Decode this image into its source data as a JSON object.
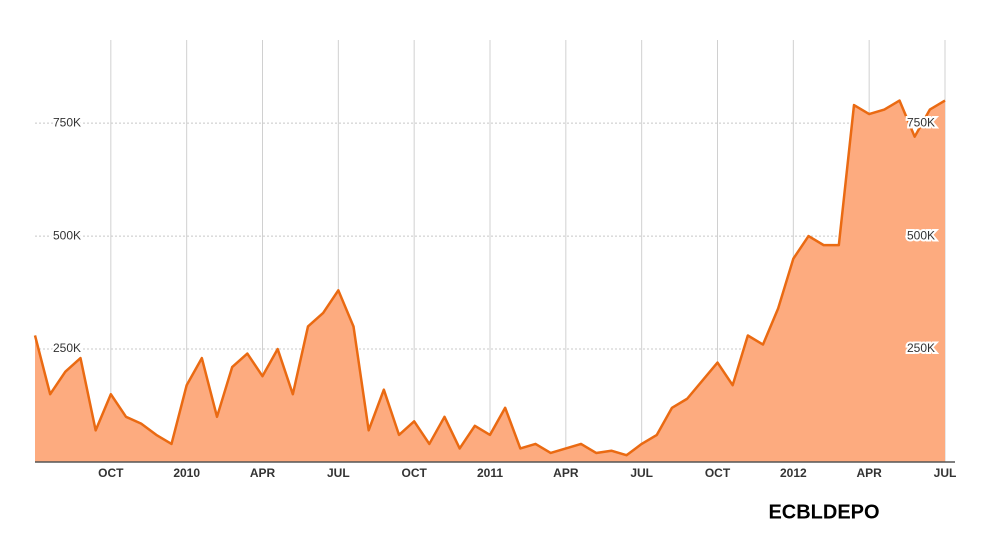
{
  "chart_data": {
    "type": "area",
    "title": "ECBLDEPO",
    "x": [
      2009.5,
      2009.55,
      2009.6,
      2009.65,
      2009.7,
      2009.75,
      2009.8,
      2009.85,
      2009.9,
      2009.95,
      2010.0,
      2010.05,
      2010.1,
      2010.15,
      2010.2,
      2010.25,
      2010.3,
      2010.35,
      2010.4,
      2010.45,
      2010.5,
      2010.55,
      2010.6,
      2010.65,
      2010.7,
      2010.75,
      2010.8,
      2010.85,
      2010.9,
      2010.95,
      2011.0,
      2011.05,
      2011.1,
      2011.15,
      2011.2,
      2011.25,
      2011.3,
      2011.35,
      2011.4,
      2011.45,
      2011.5,
      2011.55,
      2011.6,
      2011.65,
      2011.7,
      2011.75,
      2011.8,
      2011.85,
      2011.9,
      2011.95,
      2012.0,
      2012.05,
      2012.1,
      2012.15,
      2012.2,
      2012.25,
      2012.3,
      2012.35,
      2012.4,
      2012.45,
      2012.5
    ],
    "series": [
      {
        "name": "ECBLDEPO",
        "color": "#ea6a12",
        "fill": "#fdab7f",
        "values": [
          280000,
          150000,
          200000,
          230000,
          70000,
          150000,
          100000,
          85000,
          60000,
          40000,
          170000,
          230000,
          100000,
          210000,
          240000,
          190000,
          250000,
          150000,
          300000,
          330000,
          380000,
          300000,
          70000,
          160000,
          60000,
          90000,
          40000,
          100000,
          30000,
          80000,
          60000,
          120000,
          30000,
          40000,
          20000,
          30000,
          40000,
          20000,
          25000,
          15000,
          40000,
          60000,
          120000,
          140000,
          180000,
          220000,
          170000,
          280000,
          260000,
          340000,
          450000,
          500000,
          480000,
          480000,
          790000,
          770000,
          780000,
          800000,
          720000,
          780000,
          800000
        ]
      }
    ],
    "xlim": [
      2009.5,
      2012.5
    ],
    "xticks": [
      {
        "value": 2009.75,
        "label": "OCT"
      },
      {
        "value": 2010,
        "label": "2010"
      },
      {
        "value": 2010.25,
        "label": "APR"
      },
      {
        "value": 2010.5,
        "label": "JUL"
      },
      {
        "value": 2010.75,
        "label": "OCT"
      },
      {
        "value": 2011,
        "label": "2011"
      },
      {
        "value": 2011.25,
        "label": "APR"
      },
      {
        "value": 2011.5,
        "label": "JUL"
      },
      {
        "value": 2011.75,
        "label": "OCT"
      },
      {
        "value": 2012,
        "label": "2012"
      },
      {
        "value": 2012.25,
        "label": "APR"
      },
      {
        "value": 2012.5,
        "label": "JUL"
      }
    ],
    "ylim": [
      0,
      934000
    ],
    "yticks": [
      {
        "value": 250000,
        "label": "250K"
      },
      {
        "value": 500000,
        "label": "500K"
      },
      {
        "value": 750000,
        "label": "750K"
      }
    ],
    "grid": true
  }
}
